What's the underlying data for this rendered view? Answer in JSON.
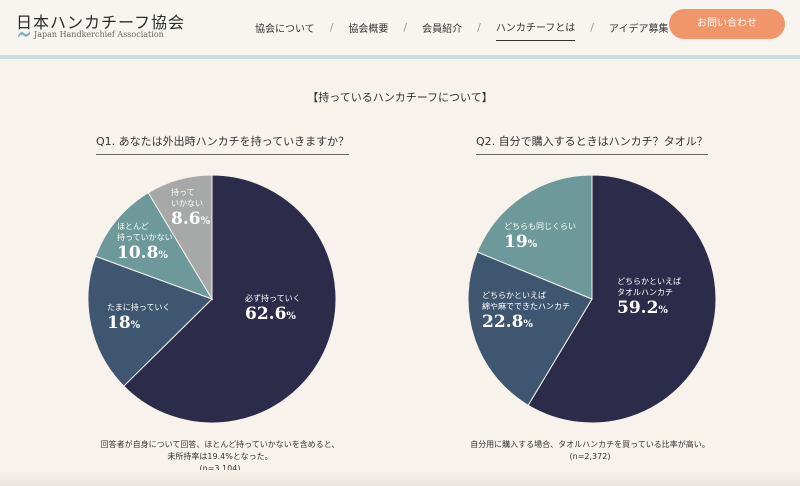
{
  "header": {
    "logo_title": "日本ハンカチーフ協会",
    "logo_subtitle": "Japan Handkerchief Association",
    "nav": [
      {
        "label": "協会について"
      },
      {
        "label": "協会概要"
      },
      {
        "label": "会員紹介"
      },
      {
        "label": "ハンカチーフとは",
        "active": true
      },
      {
        "label": "アイデア募集"
      }
    ],
    "contact_label": "お問い合わせ",
    "accent_color": "#f1956a"
  },
  "main": {
    "section_title": "【持っているハンカチーフについて】",
    "colors": {
      "navy": "#2d2b4a",
      "slate": "#3f5670",
      "teal": "#6d999a",
      "gray": "#a7a9a8"
    },
    "q1": {
      "title": "Q1. あなたは外出時ハンカチを持っていきますか？",
      "note_line1": "回答者が自身について回答、ほとんど持っていかないを含めると、",
      "note_line2": "未所持率は19.4%となった。",
      "note_n": "(n=3,104)"
    },
    "q2": {
      "title": "Q2. 自分で購入するときはハンカチ？タオル？",
      "note_line1": "自分用に購入する場合、タオルハンカチを買っている比率が高い。",
      "note_n": "(n=2,372)"
    }
  },
  "chart_data": [
    {
      "type": "pie",
      "title": "Q1. あなたは外出時ハンカチを持っていきますか？",
      "slices": [
        {
          "label": "必ず持っていく",
          "value": 62.6,
          "unit": "%",
          "color": "#2d2b4a"
        },
        {
          "label": "たまに持っていく",
          "value": 18,
          "unit": "%",
          "color": "#3f5670"
        },
        {
          "label": "ほとんど持っていかない",
          "value": 10.8,
          "unit": "%",
          "color": "#6d999a"
        },
        {
          "label": "持っていかない",
          "value": 8.6,
          "unit": "%",
          "color": "#a7a9a8"
        }
      ]
    },
    {
      "type": "pie",
      "title": "Q2. 自分で購入するときはハンカチ？タオル？",
      "slices": [
        {
          "label": "どちらかといえばタオルハンカチ",
          "value": 59.2,
          "unit": "%",
          "color": "#2d2b4a"
        },
        {
          "label": "どちらかといえば綿や麻でできたハンカチ",
          "value": 22.8,
          "unit": "%",
          "color": "#3f5670"
        },
        {
          "label": "どちらも同じくらい",
          "value": 19,
          "unit": "%",
          "color": "#6d999a"
        }
      ]
    }
  ]
}
